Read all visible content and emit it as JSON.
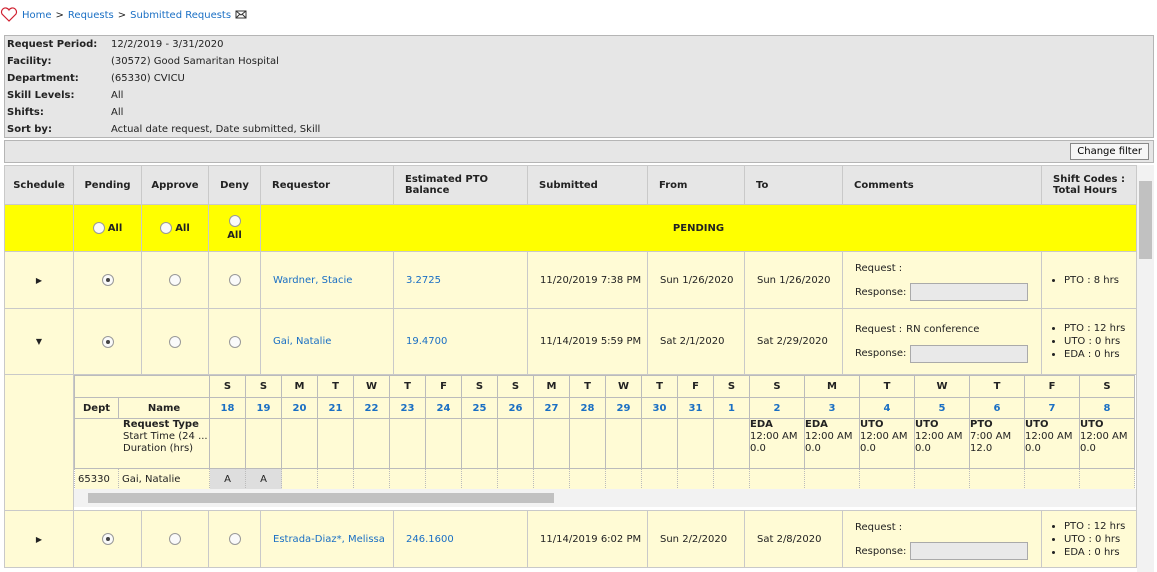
{
  "breadcrumb": {
    "items": [
      "Home",
      "Requests",
      "Submitted Requests"
    ],
    "separator": ">"
  },
  "filter": {
    "rows": [
      [
        "Request Period:",
        "12/2/2019 - 3/31/2020"
      ],
      [
        "Facility:",
        "(30572) Good Samaritan Hospital"
      ],
      [
        "Department:",
        "(65330) CVICU"
      ],
      [
        "Skill Levels:",
        "All"
      ],
      [
        "Shifts:",
        "All"
      ],
      [
        "Sort by:",
        "Actual date request, Date submitted, Skill"
      ]
    ]
  },
  "change_filter": "Change filter",
  "table": {
    "headers": [
      "Schedule",
      "Pending",
      "Approve",
      "Deny",
      "Requestor",
      "Estimated PTO Balance",
      "Submitted",
      "From",
      "To",
      "Comments",
      "Shift Codes : Total Hours"
    ],
    "all_label": "All",
    "status_label": "PENDING",
    "request_label": "Request :",
    "response_label": "Response:",
    "rows": [
      {
        "expanded": false,
        "decision": "pending",
        "requestor": "Wardner, Stacie",
        "pto_balance": "3.2725",
        "submitted": "11/20/2019 7:38 PM",
        "from": "Sun 1/26/2020",
        "to": "Sun 1/26/2020",
        "shifts": [
          "PTO : 8 hrs"
        ]
      },
      {
        "expanded": true,
        "decision": "pending",
        "requestor": "Gai, Natalie",
        "pto_balance": "19.4700",
        "submitted": "11/14/2019 5:59 PM",
        "from": "Sat 2/1/2020",
        "to": "Sat 2/29/2020",
        "comment": "RN conference",
        "shifts": [
          "PTO : 12 hrs",
          "UTO : 0 hrs",
          "EDA : 0 hrs"
        ],
        "detail": {
          "dept_header": "Dept",
          "name_header": "Name",
          "legend": [
            "Request Type",
            "Start Time (24 ...",
            "Duration (hrs)"
          ],
          "dept": "65330",
          "name": "Gai, Natalie",
          "days": [
            {
              "dow": "S",
              "date": "18",
              "shaded": true,
              "code": "A"
            },
            {
              "dow": "S",
              "date": "19",
              "shaded": true,
              "code": "A"
            },
            {
              "dow": "M",
              "date": "20"
            },
            {
              "dow": "T",
              "date": "21"
            },
            {
              "dow": "W",
              "date": "22"
            },
            {
              "dow": "T",
              "date": "23"
            },
            {
              "dow": "F",
              "date": "24"
            },
            {
              "dow": "S",
              "date": "25",
              "shaded": true
            },
            {
              "dow": "S",
              "date": "26",
              "shaded": true
            },
            {
              "dow": "M",
              "date": "27"
            },
            {
              "dow": "T",
              "date": "28"
            },
            {
              "dow": "W",
              "date": "29"
            },
            {
              "dow": "T",
              "date": "30"
            },
            {
              "dow": "F",
              "date": "31"
            },
            {
              "dow": "S",
              "date": "1",
              "shaded": true
            },
            {
              "dow": "S",
              "date": "2",
              "shaded": true,
              "shift": {
                "type": "EDA",
                "start": "12:00 AM",
                "duration": "0.0"
              }
            },
            {
              "dow": "M",
              "date": "3",
              "shift": {
                "type": "EDA",
                "start": "12:00 AM",
                "duration": "0.0"
              }
            },
            {
              "dow": "T",
              "date": "4",
              "shift": {
                "type": "UTO",
                "start": "12:00 AM",
                "duration": "0.0"
              }
            },
            {
              "dow": "W",
              "date": "5",
              "shift": {
                "type": "UTO",
                "start": "12:00 AM",
                "duration": "0.0"
              }
            },
            {
              "dow": "T",
              "date": "6",
              "shift": {
                "type": "PTO",
                "start": "7:00 AM",
                "duration": "12.0"
              }
            },
            {
              "dow": "F",
              "date": "7",
              "shift": {
                "type": "UTO",
                "start": "12:00 AM",
                "duration": "0.0"
              }
            },
            {
              "dow": "S",
              "date": "8",
              "shaded": true,
              "shift": {
                "type": "UTO",
                "start": "12:00 AM",
                "duration": "0.0"
              }
            }
          ]
        }
      },
      {
        "expanded": false,
        "decision": "pending",
        "requestor": "Estrada-Diaz*, Melissa",
        "pto_balance": "246.1600",
        "submitted": "11/14/2019 6:02 PM",
        "from": "Sun 2/2/2020",
        "to": "Sat 2/8/2020",
        "shifts": [
          "PTO : 12 hrs",
          "UTO : 0 hrs",
          "EDA : 0 hrs"
        ]
      }
    ]
  }
}
